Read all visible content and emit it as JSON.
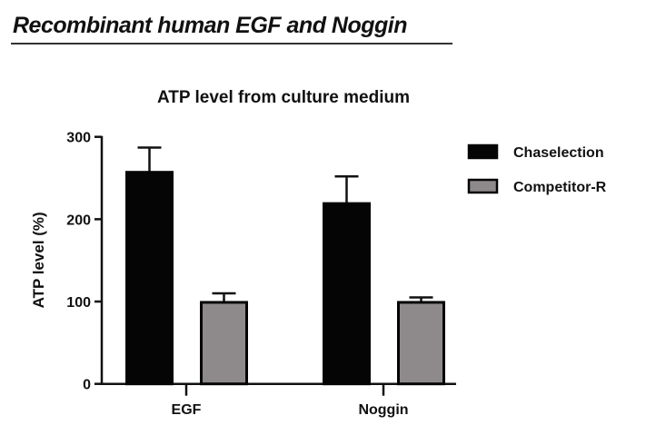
{
  "header": {
    "title": "Recombinant human EGF and Noggin"
  },
  "chart_data": {
    "type": "bar",
    "title": "ATP level from culture medium",
    "xlabel": "",
    "ylabel": "ATP level (%)",
    "ylim": [
      0,
      300
    ],
    "yticks": [
      0,
      100,
      200,
      300
    ],
    "categories": [
      "EGF",
      "Noggin"
    ],
    "series": [
      {
        "name": "Chaselection",
        "color": "#050505",
        "values": [
          257,
          219
        ],
        "error_upper": [
          287,
          252
        ]
      },
      {
        "name": "Competitor-R",
        "color": "#8e8a8b",
        "values": [
          99,
          99
        ],
        "error_upper": [
          110,
          105
        ]
      }
    ],
    "legend": "right",
    "grid": false
  }
}
